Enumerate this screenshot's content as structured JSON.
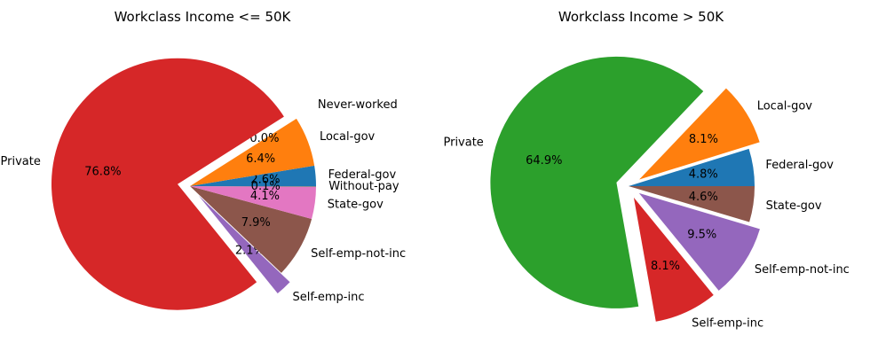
{
  "chart_data": [
    {
      "type": "pie",
      "title": "Workclass Income <= 50K",
      "slices": [
        {
          "label": "Federal-gov",
          "value": 2.6,
          "pct_label": "2.6%",
          "color": "#1f77b4",
          "explode": 0.0
        },
        {
          "label": "Local-gov",
          "value": 6.4,
          "pct_label": "6.4%",
          "color": "#ff7f0e",
          "explode": 0.0
        },
        {
          "label": "Never-worked",
          "value": 0.0,
          "pct_label": "0.0%",
          "color": "#2ca02c",
          "explode": 0.1
        },
        {
          "label": "Private",
          "value": 76.8,
          "pct_label": "76.8%",
          "color": "#d62728",
          "explode": 0.1
        },
        {
          "label": "Self-emp-inc",
          "value": 2.1,
          "pct_label": "2.1%",
          "color": "#9467bd",
          "explode": 0.1
        },
        {
          "label": "Self-emp-not-inc",
          "value": 7.9,
          "pct_label": "7.9%",
          "color": "#8c564b",
          "explode": 0.0
        },
        {
          "label": "State-gov",
          "value": 4.1,
          "pct_label": "4.1%",
          "color": "#e377c2",
          "explode": 0.0
        },
        {
          "label": "Without-pay",
          "value": 0.1,
          "pct_label": "0.1%",
          "color": "#7f7f7f",
          "explode": 0.0
        }
      ]
    },
    {
      "type": "pie",
      "title": "Workclass Income > 50K",
      "slices": [
        {
          "label": "Federal-gov",
          "value": 4.8,
          "pct_label": "4.8%",
          "color": "#1f77b4",
          "explode": 0.0
        },
        {
          "label": "Local-gov",
          "value": 8.1,
          "pct_label": "8.1%",
          "color": "#ff7f0e",
          "explode": 0.1
        },
        {
          "label": "Private",
          "value": 64.9,
          "pct_label": "64.9%",
          "color": "#2ca02c",
          "explode": 0.1
        },
        {
          "label": "Self-emp-inc",
          "value": 8.1,
          "pct_label": "8.1%",
          "color": "#d62728",
          "explode": 0.1
        },
        {
          "label": "Self-emp-not-inc",
          "value": 9.5,
          "pct_label": "9.5%",
          "color": "#9467bd",
          "explode": 0.1
        },
        {
          "label": "State-gov",
          "value": 4.6,
          "pct_label": "4.6%",
          "color": "#8c564b",
          "explode": 0.0
        }
      ]
    }
  ]
}
